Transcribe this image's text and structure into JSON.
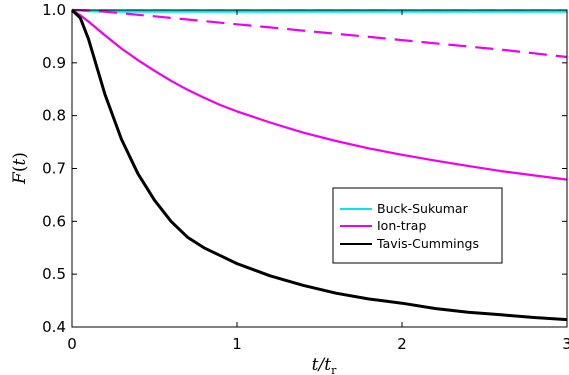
{
  "chart_data": {
    "type": "line",
    "xlabel": "t/t_r",
    "ylabel": "F(t)",
    "xlim": [
      0,
      3
    ],
    "ylim": [
      0.4,
      1.0
    ],
    "x_ticks": [
      0,
      1,
      2,
      3
    ],
    "y_ticks": [
      0.4,
      0.5,
      0.6,
      0.7,
      0.8,
      0.9,
      1.0
    ],
    "x_tick_labels": [
      "0",
      "1",
      "2",
      "3"
    ],
    "y_tick_labels": [
      "0.4",
      "0.5",
      "0.6",
      "0.7",
      "0.8",
      "0.9",
      "1.0"
    ],
    "grid": false,
    "legend_position": "right",
    "legend": [
      "Buck-Sukumar",
      "Ion-trap",
      "Tavis-Cummings"
    ],
    "x": [
      0,
      0.05,
      0.1,
      0.2,
      0.3,
      0.4,
      0.5,
      0.6,
      0.7,
      0.8,
      0.9,
      1.0,
      1.2,
      1.4,
      1.6,
      1.8,
      2.0,
      2.2,
      2.4,
      2.6,
      2.8,
      3.0
    ],
    "series": [
      {
        "name": "Buck-Sukumar",
        "color": "#00e5ee",
        "dash": "solid",
        "values": [
          1.0,
          0.999,
          0.998,
          0.997,
          0.997,
          0.997,
          0.997,
          0.997,
          0.997,
          0.997,
          0.997,
          0.997,
          0.997,
          0.997,
          0.997,
          0.997,
          0.997,
          0.997,
          0.997,
          0.997,
          0.997,
          0.997
        ]
      },
      {
        "color": "#00e5ee",
        "dash": "dashed",
        "values": [
          1.0,
          1.0,
          0.999,
          0.999,
          0.999,
          0.999,
          0.999,
          0.999,
          0.999,
          0.999,
          0.999,
          0.999,
          0.999,
          0.999,
          0.999,
          0.999,
          0.999,
          0.999,
          0.999,
          0.999,
          0.999,
          0.999
        ]
      },
      {
        "name": "Ion-trap",
        "color": "#ee00ee",
        "dash": "solid",
        "values": [
          1.0,
          0.99,
          0.978,
          0.952,
          0.927,
          0.905,
          0.885,
          0.866,
          0.849,
          0.834,
          0.82,
          0.808,
          0.787,
          0.768,
          0.752,
          0.738,
          0.726,
          0.715,
          0.705,
          0.695,
          0.687,
          0.679
        ]
      },
      {
        "color": "#ee00ee",
        "dash": "dashed",
        "values": [
          1.0,
          0.9995,
          0.999,
          0.997,
          0.994,
          0.991,
          0.988,
          0.985,
          0.982,
          0.979,
          0.976,
          0.973,
          0.967,
          0.961,
          0.955,
          0.949,
          0.943,
          0.937,
          0.931,
          0.925,
          0.918,
          0.911
        ]
      },
      {
        "name": "Tavis-Cummings",
        "color": "#000000",
        "dash": "solid",
        "values": [
          1.0,
          0.985,
          0.945,
          0.84,
          0.755,
          0.69,
          0.64,
          0.6,
          0.57,
          0.55,
          0.535,
          0.52,
          0.497,
          0.479,
          0.464,
          0.453,
          0.445,
          0.435,
          0.428,
          0.423,
          0.418,
          0.414
        ]
      }
    ]
  }
}
